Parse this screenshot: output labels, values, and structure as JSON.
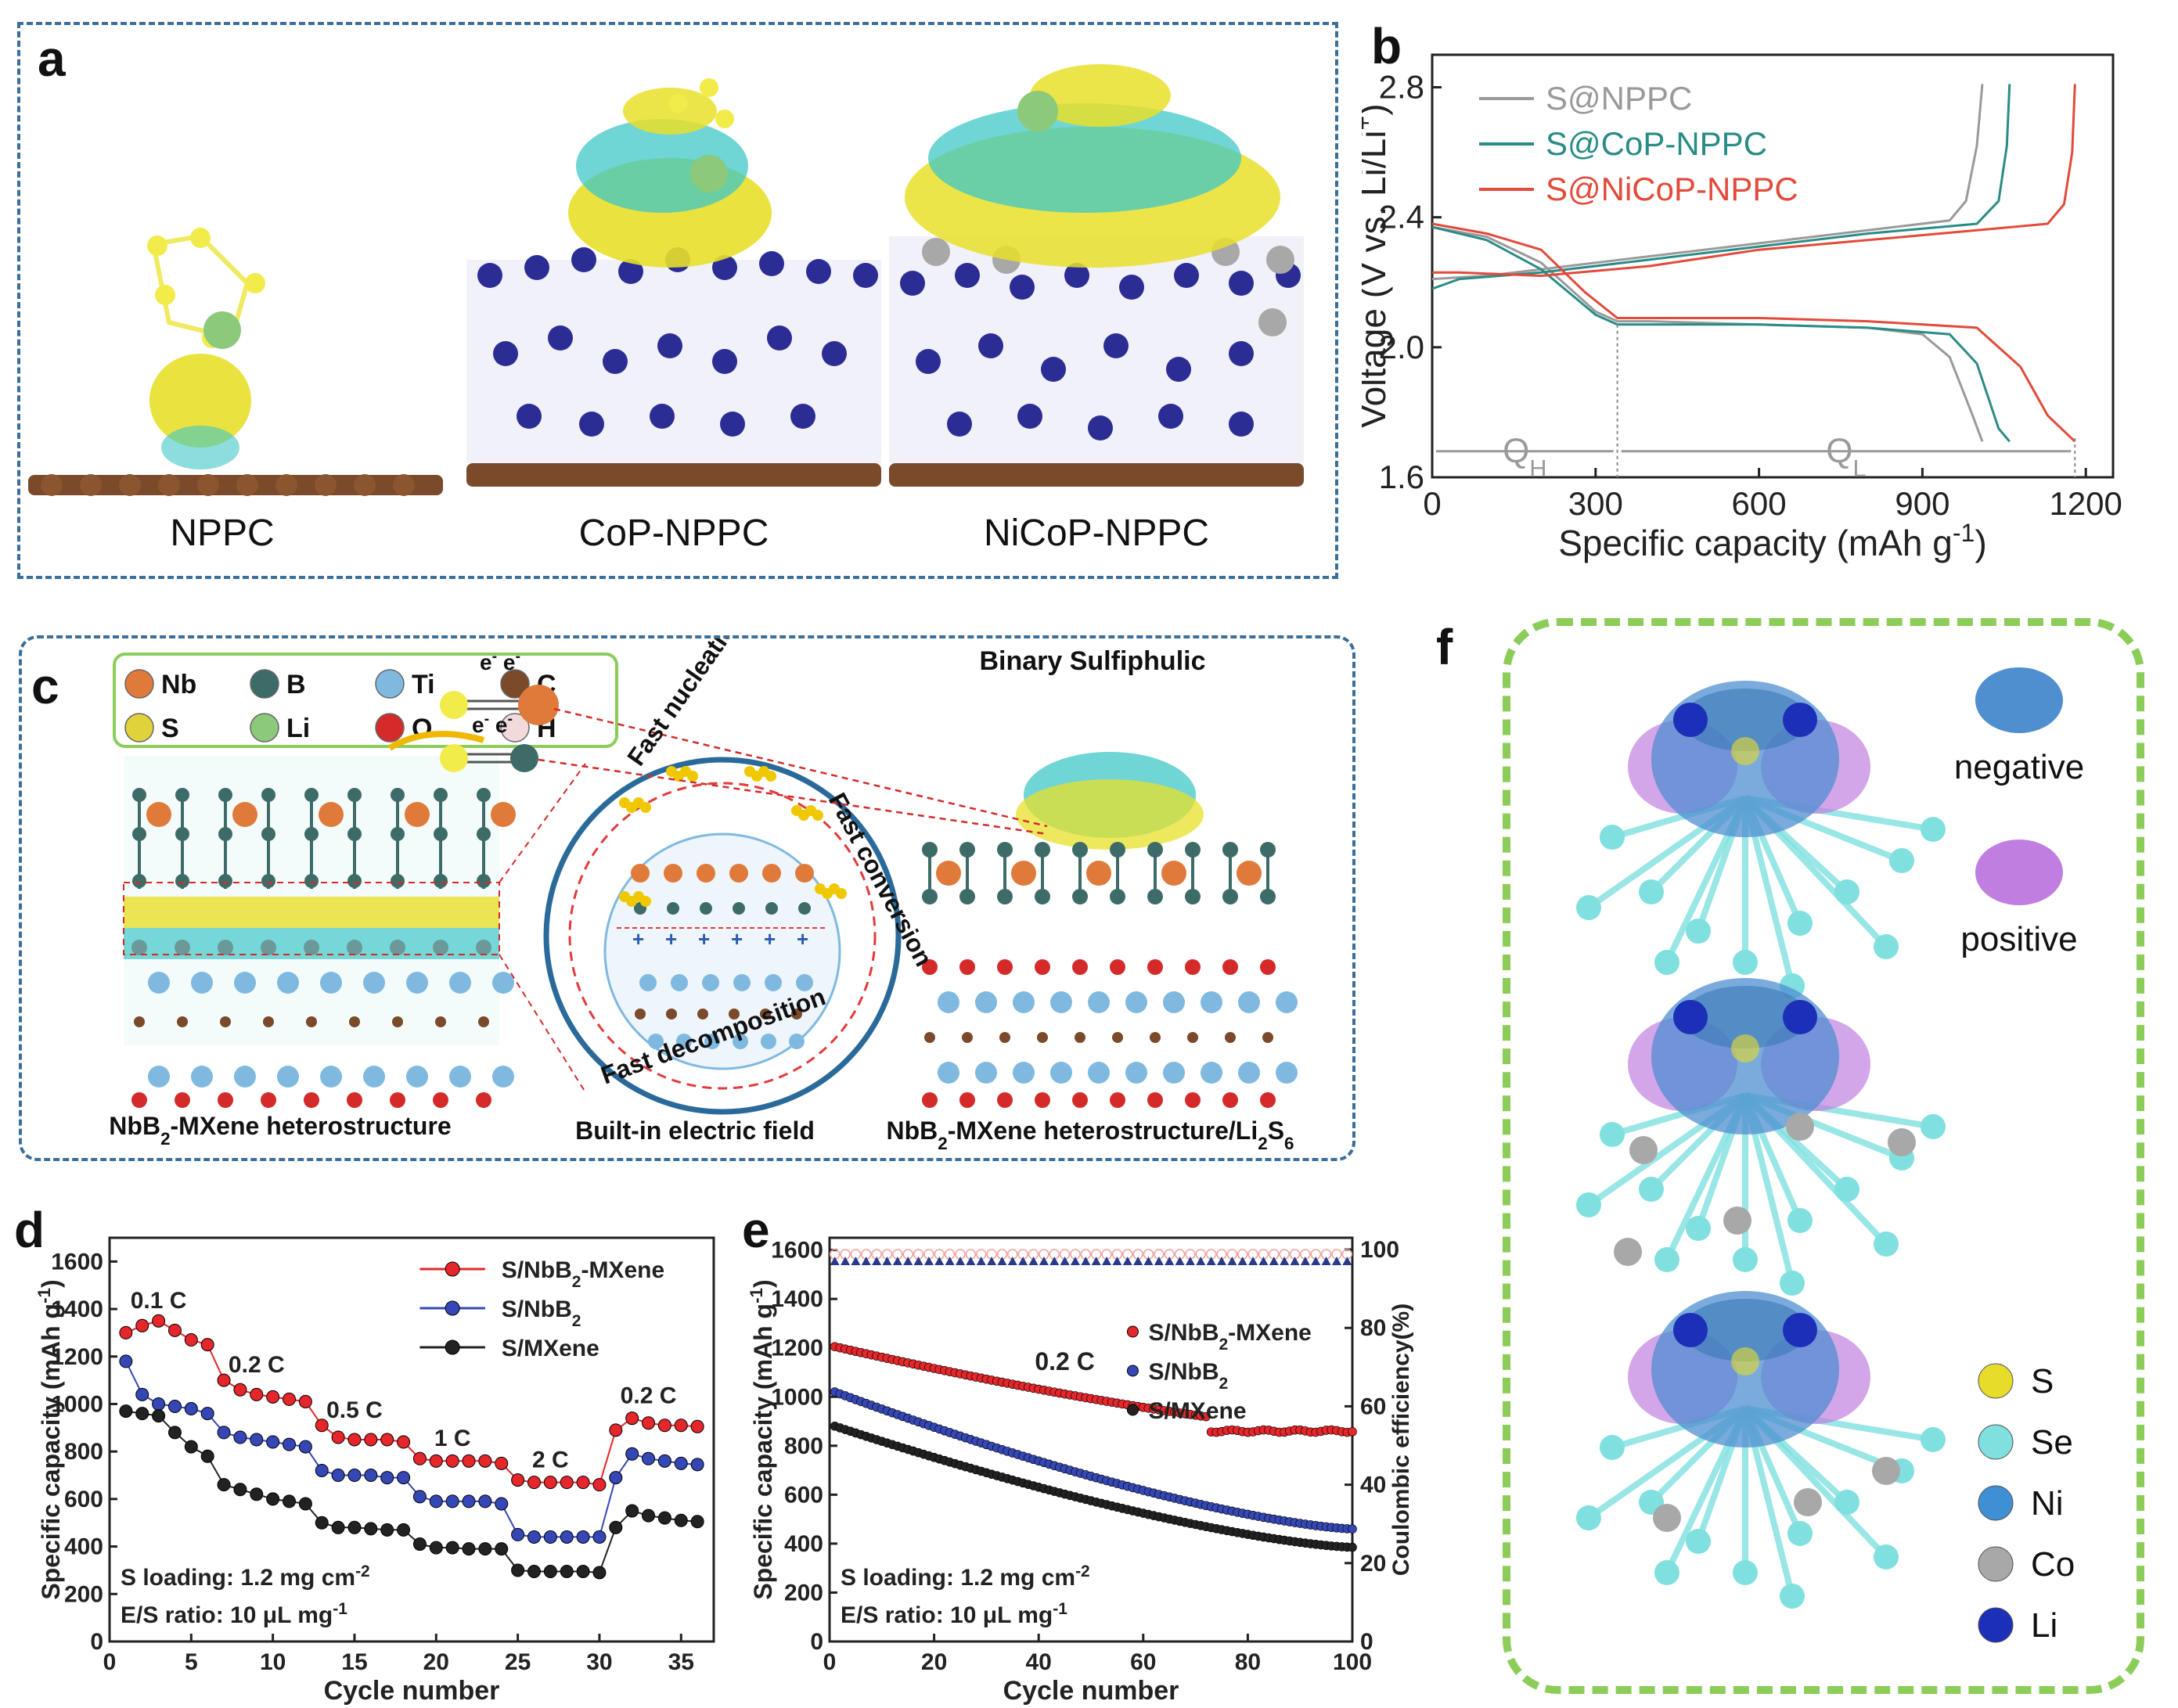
{
  "colors": {
    "panel_border_blue": "#3b6f9a",
    "panel_border_green": "#8ccd5a",
    "npnc_gray": "#9a9a9a",
    "cop_teal": "#2a8c86",
    "nicop_red": "#e24a3a",
    "red_series": "#e5262a",
    "blue_series": "#3447b5",
    "black_series": "#222222",
    "charge_yellow": "#e8e02a",
    "charge_cyan": "#3fc7c7",
    "neg_blue": "#4f8fd0",
    "pos_purple": "#c07fe0"
  },
  "panel_a": {
    "label": "a",
    "structures": [
      "NPPC",
      "CoP-NPPC",
      "NiCoP-NPPC"
    ]
  },
  "panel_b": {
    "label": "b",
    "chart_data": {
      "type": "line",
      "xlabel": "Specific capacity (mAh g-1)",
      "ylabel": "Voltage (V vs. Li/Li+)",
      "xlim": [
        0,
        1250
      ],
      "ylim": [
        1.6,
        2.9
      ],
      "xticks": [
        0,
        300,
        600,
        900,
        1200
      ],
      "yticks": [
        1.6,
        2.0,
        2.4,
        2.8
      ],
      "annotations": [
        "QH",
        "QL"
      ],
      "divider_x": 340,
      "ql_end_x": 1180,
      "series": [
        {
          "name": "S@NPPC",
          "color": "#9a9a9a",
          "discharge": [
            [
              0,
              2.37
            ],
            [
              100,
              2.34
            ],
            [
              200,
              2.26
            ],
            [
              300,
              2.11
            ],
            [
              340,
              2.08
            ],
            [
              400,
              2.08
            ],
            [
              600,
              2.07
            ],
            [
              800,
              2.06
            ],
            [
              900,
              2.04
            ],
            [
              950,
              1.97
            ],
            [
              990,
              1.8
            ],
            [
              1010,
              1.71
            ]
          ],
          "charge": [
            [
              0,
              2.21
            ],
            [
              100,
              2.22
            ],
            [
              200,
              2.24
            ],
            [
              400,
              2.28
            ],
            [
              600,
              2.32
            ],
            [
              800,
              2.36
            ],
            [
              950,
              2.39
            ],
            [
              980,
              2.45
            ],
            [
              1000,
              2.62
            ],
            [
              1010,
              2.81
            ]
          ]
        },
        {
          "name": "S@CoP-NPPC",
          "color": "#2a8c86",
          "discharge": [
            [
              0,
              2.37
            ],
            [
              100,
              2.33
            ],
            [
              200,
              2.24
            ],
            [
              300,
              2.1
            ],
            [
              340,
              2.07
            ],
            [
              400,
              2.07
            ],
            [
              600,
              2.07
            ],
            [
              800,
              2.06
            ],
            [
              950,
              2.04
            ],
            [
              1000,
              1.95
            ],
            [
              1040,
              1.75
            ],
            [
              1060,
              1.71
            ]
          ],
          "charge": [
            [
              0,
              2.18
            ],
            [
              50,
              2.21
            ],
            [
              200,
              2.23
            ],
            [
              400,
              2.27
            ],
            [
              600,
              2.31
            ],
            [
              800,
              2.35
            ],
            [
              1000,
              2.38
            ],
            [
              1040,
              2.45
            ],
            [
              1055,
              2.62
            ],
            [
              1060,
              2.81
            ]
          ]
        },
        {
          "name": "S@NiCoP-NPPC",
          "color": "#e24a3a",
          "discharge": [
            [
              0,
              2.38
            ],
            [
              100,
              2.35
            ],
            [
              200,
              2.3
            ],
            [
              280,
              2.17
            ],
            [
              340,
              2.09
            ],
            [
              400,
              2.09
            ],
            [
              600,
              2.09
            ],
            [
              800,
              2.08
            ],
            [
              1000,
              2.06
            ],
            [
              1080,
              1.94
            ],
            [
              1130,
              1.79
            ],
            [
              1180,
              1.71
            ]
          ],
          "charge": [
            [
              0,
              2.23
            ],
            [
              50,
              2.23
            ],
            [
              200,
              2.22
            ],
            [
              400,
              2.25
            ],
            [
              600,
              2.3
            ],
            [
              800,
              2.33
            ],
            [
              1000,
              2.36
            ],
            [
              1130,
              2.38
            ],
            [
              1160,
              2.44
            ],
            [
              1175,
              2.6
            ],
            [
              1180,
              2.81
            ]
          ]
        }
      ]
    }
  },
  "panel_c": {
    "label": "c",
    "legend": [
      {
        "symbol": "Nb",
        "color": "#e07a3a"
      },
      {
        "symbol": "B",
        "color": "#3d6b68"
      },
      {
        "symbol": "Ti",
        "color": "#7fb9e0"
      },
      {
        "symbol": "C",
        "color": "#7a4a2a"
      },
      {
        "symbol": "S",
        "color": "#e0d23a"
      },
      {
        "symbol": "Li",
        "color": "#8cc97a"
      },
      {
        "symbol": "O",
        "color": "#d42a2a"
      },
      {
        "symbol": "H",
        "color": "#f3dada"
      }
    ],
    "caption_left": "NbB2-MXene heterostructure",
    "caption_middle": "Built-in electric field",
    "caption_right": "NbB2-MXene heterostructure/Li2S6",
    "title_right": "Binary Sulfiphulic",
    "arc_top_left": "Fast nucleation",
    "arc_right": "Fast conversion",
    "arc_bottom": "Fast decomposition",
    "electron_label": "e- e-"
  },
  "panel_d": {
    "label": "d",
    "chart_data": {
      "type": "scatter",
      "xlabel": "Cycle number",
      "ylabel": "Specific capacity (mAh g-1)",
      "xlim": [
        0,
        37
      ],
      "ylim": [
        0,
        1700
      ],
      "xticks": [
        0,
        5,
        10,
        15,
        20,
        25,
        30,
        35
      ],
      "yticks": [
        0,
        200,
        400,
        600,
        800,
        1000,
        1200,
        1400,
        1600
      ],
      "rate_labels": [
        "0.1 C",
        "0.2 C",
        "0.5 C",
        "1 C",
        "2 C",
        "0.2 C"
      ],
      "notes": [
        "S loading: 1.2 mg cm-2",
        "E/S ratio: 10 μL mg-1"
      ],
      "series": [
        {
          "name": "S/NbB2-MXene",
          "color": "#e5262a",
          "values": [
            1300,
            1330,
            1350,
            1310,
            1270,
            1250,
            1100,
            1060,
            1040,
            1030,
            1020,
            1010,
            910,
            860,
            850,
            850,
            850,
            840,
            770,
            760,
            760,
            760,
            760,
            750,
            680,
            670,
            670,
            670,
            670,
            660,
            890,
            940,
            920,
            910,
            910,
            905
          ]
        },
        {
          "name": "S/NbB2",
          "color": "#3447b5",
          "values": [
            1180,
            1040,
            1000,
            990,
            980,
            960,
            880,
            860,
            850,
            840,
            830,
            820,
            720,
            700,
            700,
            700,
            690,
            690,
            610,
            590,
            590,
            590,
            590,
            580,
            450,
            440,
            440,
            440,
            440,
            440,
            690,
            790,
            770,
            760,
            750,
            745
          ]
        },
        {
          "name": "S/MXene",
          "color": "#222222",
          "values": [
            970,
            960,
            950,
            880,
            820,
            780,
            660,
            640,
            620,
            600,
            590,
            580,
            500,
            480,
            480,
            475,
            470,
            470,
            410,
            395,
            395,
            390,
            390,
            390,
            300,
            295,
            295,
            295,
            295,
            290,
            480,
            550,
            530,
            520,
            510,
            505
          ]
        }
      ]
    }
  },
  "panel_e": {
    "label": "e",
    "chart_data": {
      "type": "scatter",
      "xlabel": "Cycle number",
      "ylabel": "Specific capacity (mAh g-1)",
      "y2label": "Coulombic efficiency(%)",
      "xlim": [
        0,
        100
      ],
      "ylim": [
        0,
        1650
      ],
      "y2lim": [
        0,
        103
      ],
      "xticks": [
        0,
        20,
        40,
        60,
        80,
        100
      ],
      "yticks": [
        0,
        200,
        400,
        600,
        800,
        1000,
        1200,
        1400,
        1600
      ],
      "y2ticks": [
        0,
        20,
        40,
        60,
        80,
        100
      ],
      "rate_label": "0.2 C",
      "notes": [
        "S loading: 1.2 mg cm-2",
        "E/S ratio: 10 μL mg-1"
      ],
      "series": [
        {
          "name": "S/NbB2-MXene",
          "color": "#e5262a",
          "start": 1205,
          "end": 860
        },
        {
          "name": "S/NbB2",
          "color": "#3447b5",
          "start": 1020,
          "end": 460
        },
        {
          "name": "S/MXene",
          "color": "#222222",
          "start": 880,
          "end": 385
        }
      ],
      "efficiency_pct": 98
    }
  },
  "panel_f": {
    "label": "f",
    "legend_charge": [
      "negative",
      "positive"
    ],
    "legend_atoms": [
      {
        "symbol": "S",
        "color": "#e8dc2a"
      },
      {
        "symbol": "Se",
        "color": "#7fe0df"
      },
      {
        "symbol": "Ni",
        "color": "#3f8fd5"
      },
      {
        "symbol": "Co",
        "color": "#a8a8a8"
      },
      {
        "symbol": "Li",
        "color": "#1c2fb8"
      }
    ]
  }
}
